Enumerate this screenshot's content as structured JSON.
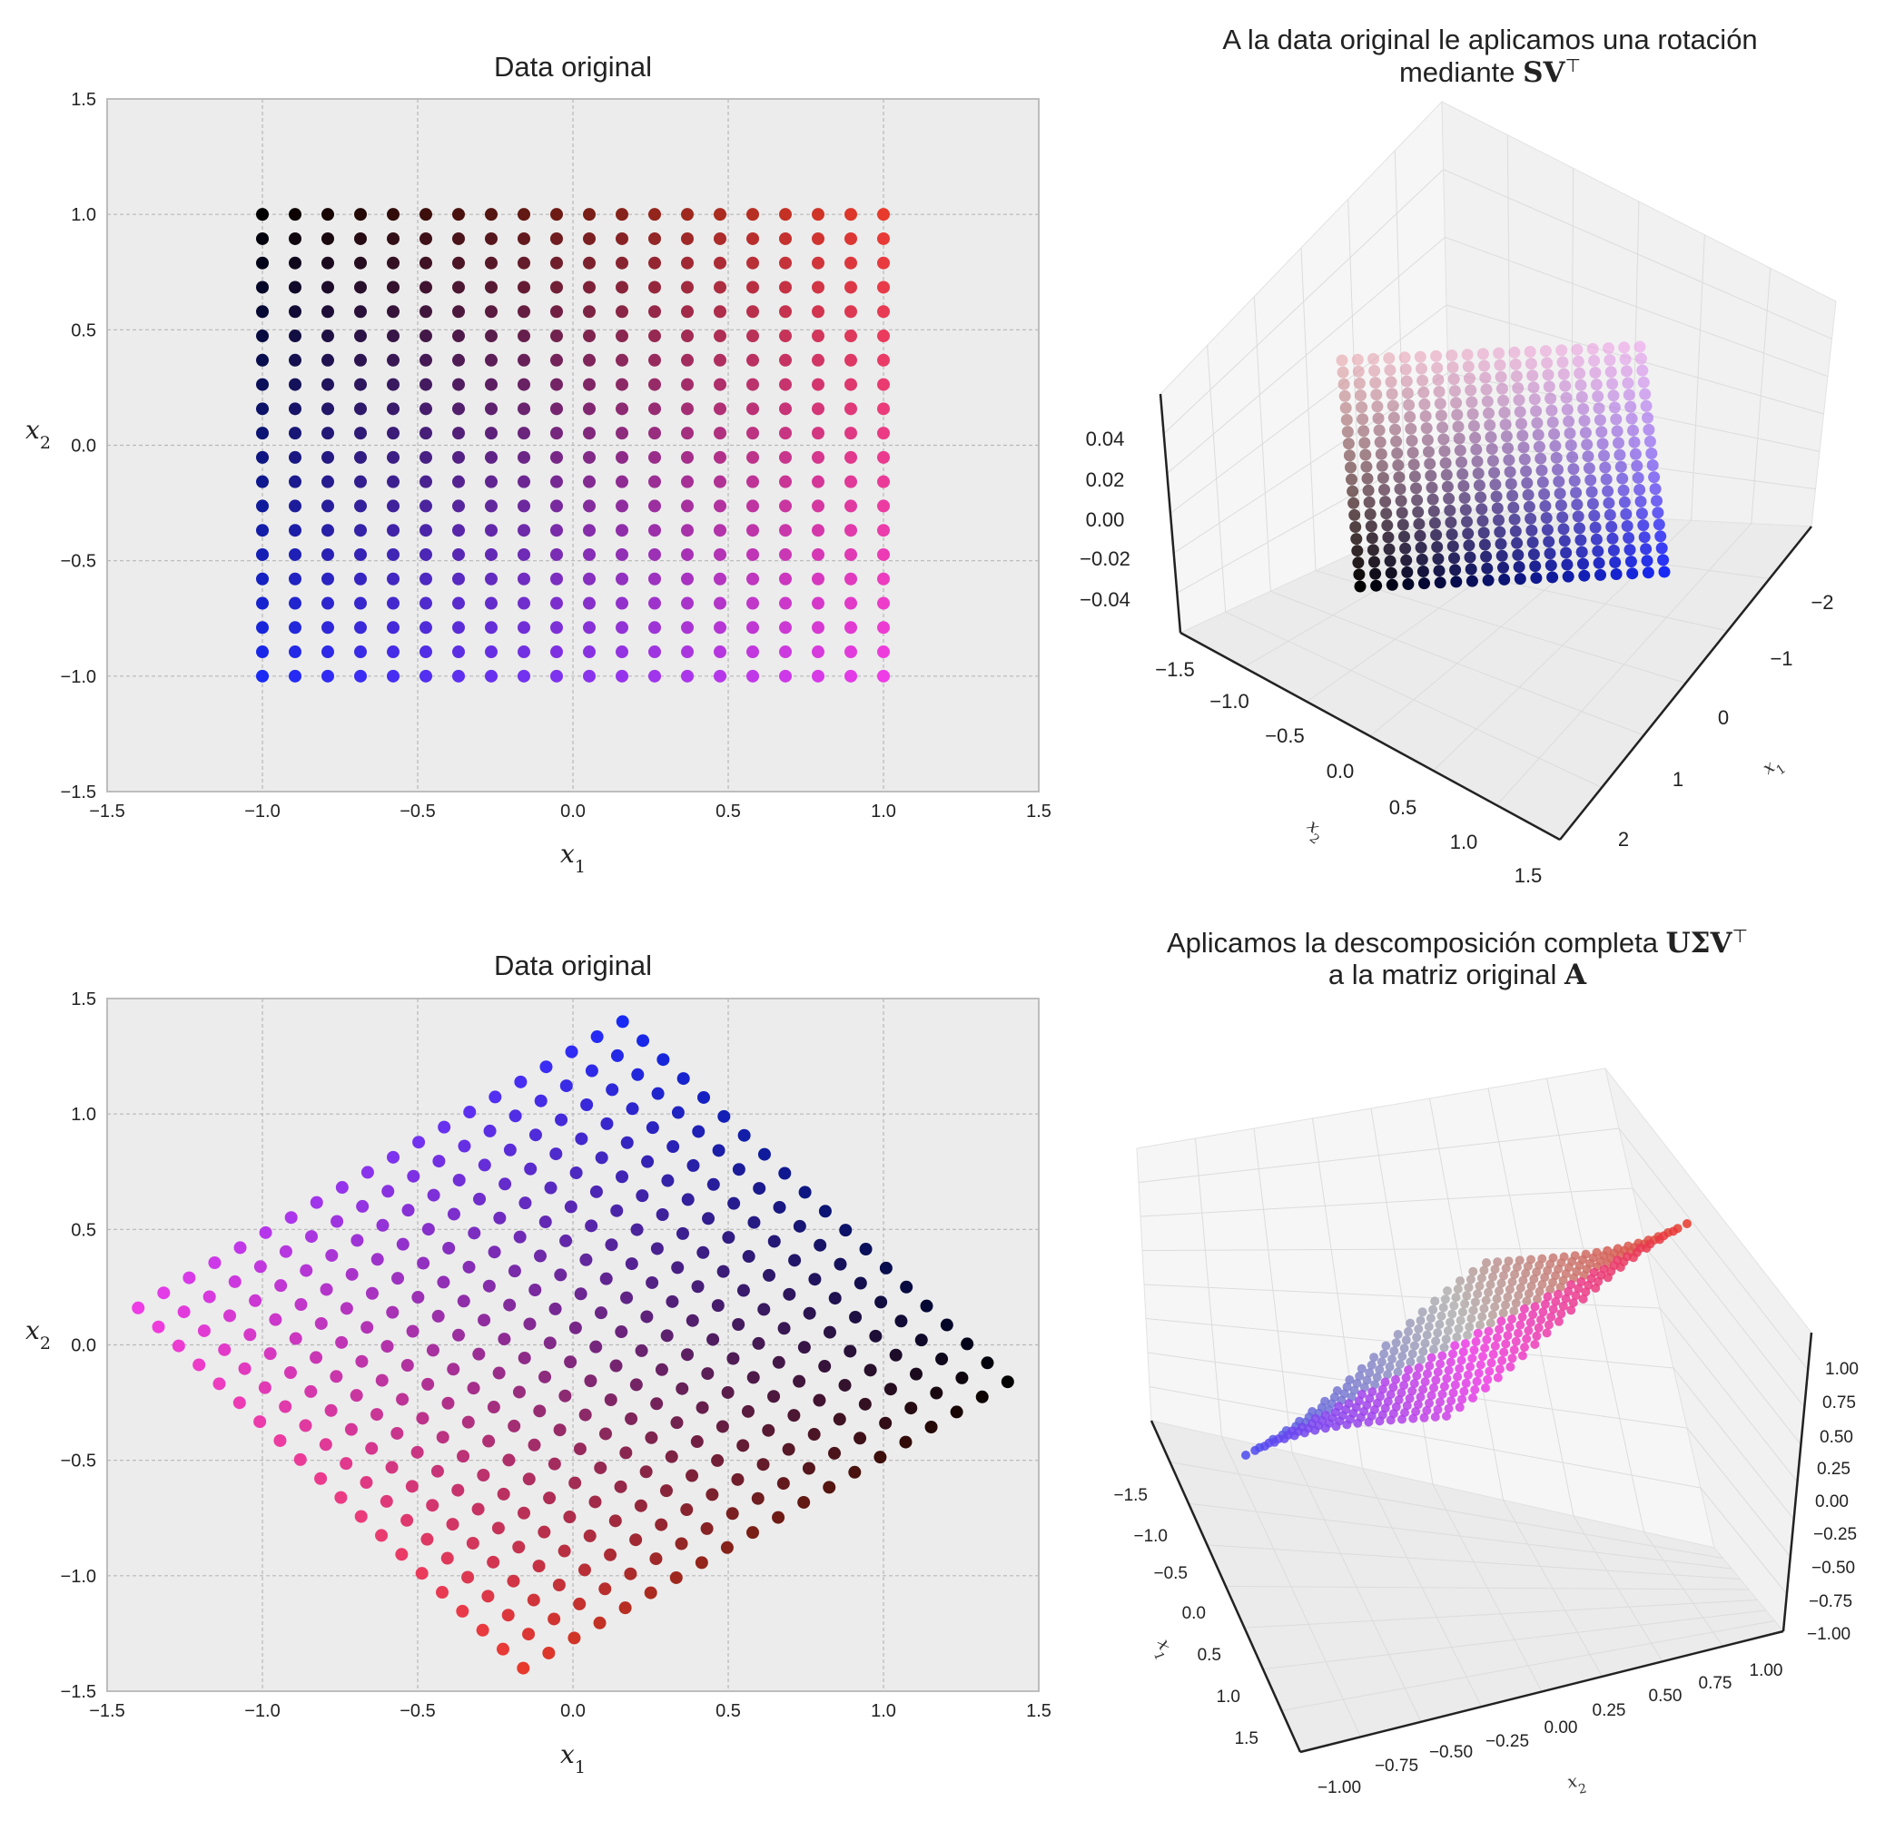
{
  "chart_data": [
    {
      "type": "scatter",
      "title": "Data original",
      "xlabel": "x1",
      "ylabel": "x2",
      "xlim": [
        -1.5,
        1.5
      ],
      "ylim": [
        -1.5,
        1.5
      ],
      "xticks": [
        "−1.5",
        "−1.0",
        "−0.5",
        "0.0",
        "0.5",
        "1.0",
        "1.5"
      ],
      "yticks": [
        "1.5",
        "1.0",
        "0.5",
        "0.0",
        "−0.5",
        "−1.0",
        "−1.5"
      ],
      "grid": true,
      "background": "#ececec",
      "points": "20×20 grid of points spanning x1 ∈ [−1, 1], x2 ∈ [−1, 1] (step 2/19); colour blends black (−1,1), red (1,1), blue (−1,−1), magenta (1,−1)",
      "grid_n": 20,
      "range": [
        -1,
        1
      ],
      "corner_colors": {
        "top_left": "#000000",
        "top_right": "#e83a2c",
        "bottom_left": "#1a2af5",
        "bottom_right": "#ee3ce6"
      }
    },
    {
      "type": "scatter",
      "title": "A la data original le aplicamos una rotación",
      "title_line2": "mediante ",
      "title_math": "SV",
      "title_sup": "⊤",
      "projection": "3d",
      "xlabel": "x1",
      "ylabel": "x2",
      "x_ticks": [
        "−2",
        "−1",
        "0",
        "1",
        "2"
      ],
      "y_ticks": [
        "−1.5",
        "−1.0",
        "−0.5",
        "0.0",
        "0.5",
        "1.0",
        "1.5"
      ],
      "z_ticks": [
        "0.04",
        "0.02",
        "0.00",
        "−0.02",
        "−0.04"
      ],
      "xlim": [
        -2,
        2
      ],
      "ylim": [
        -1.5,
        1.5
      ],
      "zlim": [
        -0.04,
        0.04
      ],
      "grid_n": 20,
      "corner_colors": {
        "back_left": "#e39aa0",
        "back_right": "#ec98ec",
        "front_left": "#000000",
        "front_right": "#1a2af5"
      }
    },
    {
      "type": "scatter",
      "title": "Data original",
      "xlabel": "x1",
      "ylabel": "x2",
      "xlim": [
        -1.5,
        1.5
      ],
      "ylim": [
        -1.5,
        1.5
      ],
      "xticks": [
        "−1.5",
        "−1.0",
        "−0.5",
        "0.0",
        "0.5",
        "1.0",
        "1.5"
      ],
      "yticks": [
        "1.5",
        "1.0",
        "0.5",
        "0.0",
        "−0.5",
        "−1.0",
        "−1.5"
      ],
      "grid": true,
      "background": "#ececec",
      "corners": {
        "blue": [
          0.16,
          1.4
        ],
        "black": [
          1.4,
          -0.16
        ],
        "red": [
          -0.16,
          -1.4
        ],
        "magenta": [
          -1.4,
          0.16
        ]
      },
      "grid_n": 20,
      "corner_colors": {
        "top": "#1a2af5",
        "right": "#000000",
        "bottom": "#e83a2c",
        "left": "#ee3ce6"
      }
    },
    {
      "type": "scatter",
      "title": "Aplicamos la descomposición completa ",
      "title_math": "UΣV",
      "title_sup": "⊤",
      "title_line2": "a la matriz original ",
      "title_math2": "A",
      "projection": "3d",
      "xlabel": "x1",
      "ylabel": "x2",
      "x_ticks": [
        "−1.5",
        "−1.0",
        "−0.5",
        "0.0",
        "0.5",
        "1.0",
        "1.5"
      ],
      "y_ticks": [
        "−1.00",
        "−0.75",
        "−0.50",
        "−0.25",
        "0.00",
        "0.25",
        "0.50",
        "0.75",
        "1.00"
      ],
      "z_ticks": [
        "1.00",
        "0.75",
        "0.50",
        "0.25",
        "0.00",
        "−0.25",
        "−0.50",
        "−0.75",
        "−1.00"
      ],
      "xlim": [
        -1.5,
        1.5
      ],
      "ylim": [
        -1.0,
        1.0
      ],
      "zlim": [
        -1.0,
        1.0
      ],
      "grid_n": 20,
      "corner_colors": {
        "low": "#4a4af0",
        "mid_top": "#ee3ce6",
        "mid_bottom": "#b0b0b0",
        "high": "#e83a2c"
      }
    }
  ]
}
